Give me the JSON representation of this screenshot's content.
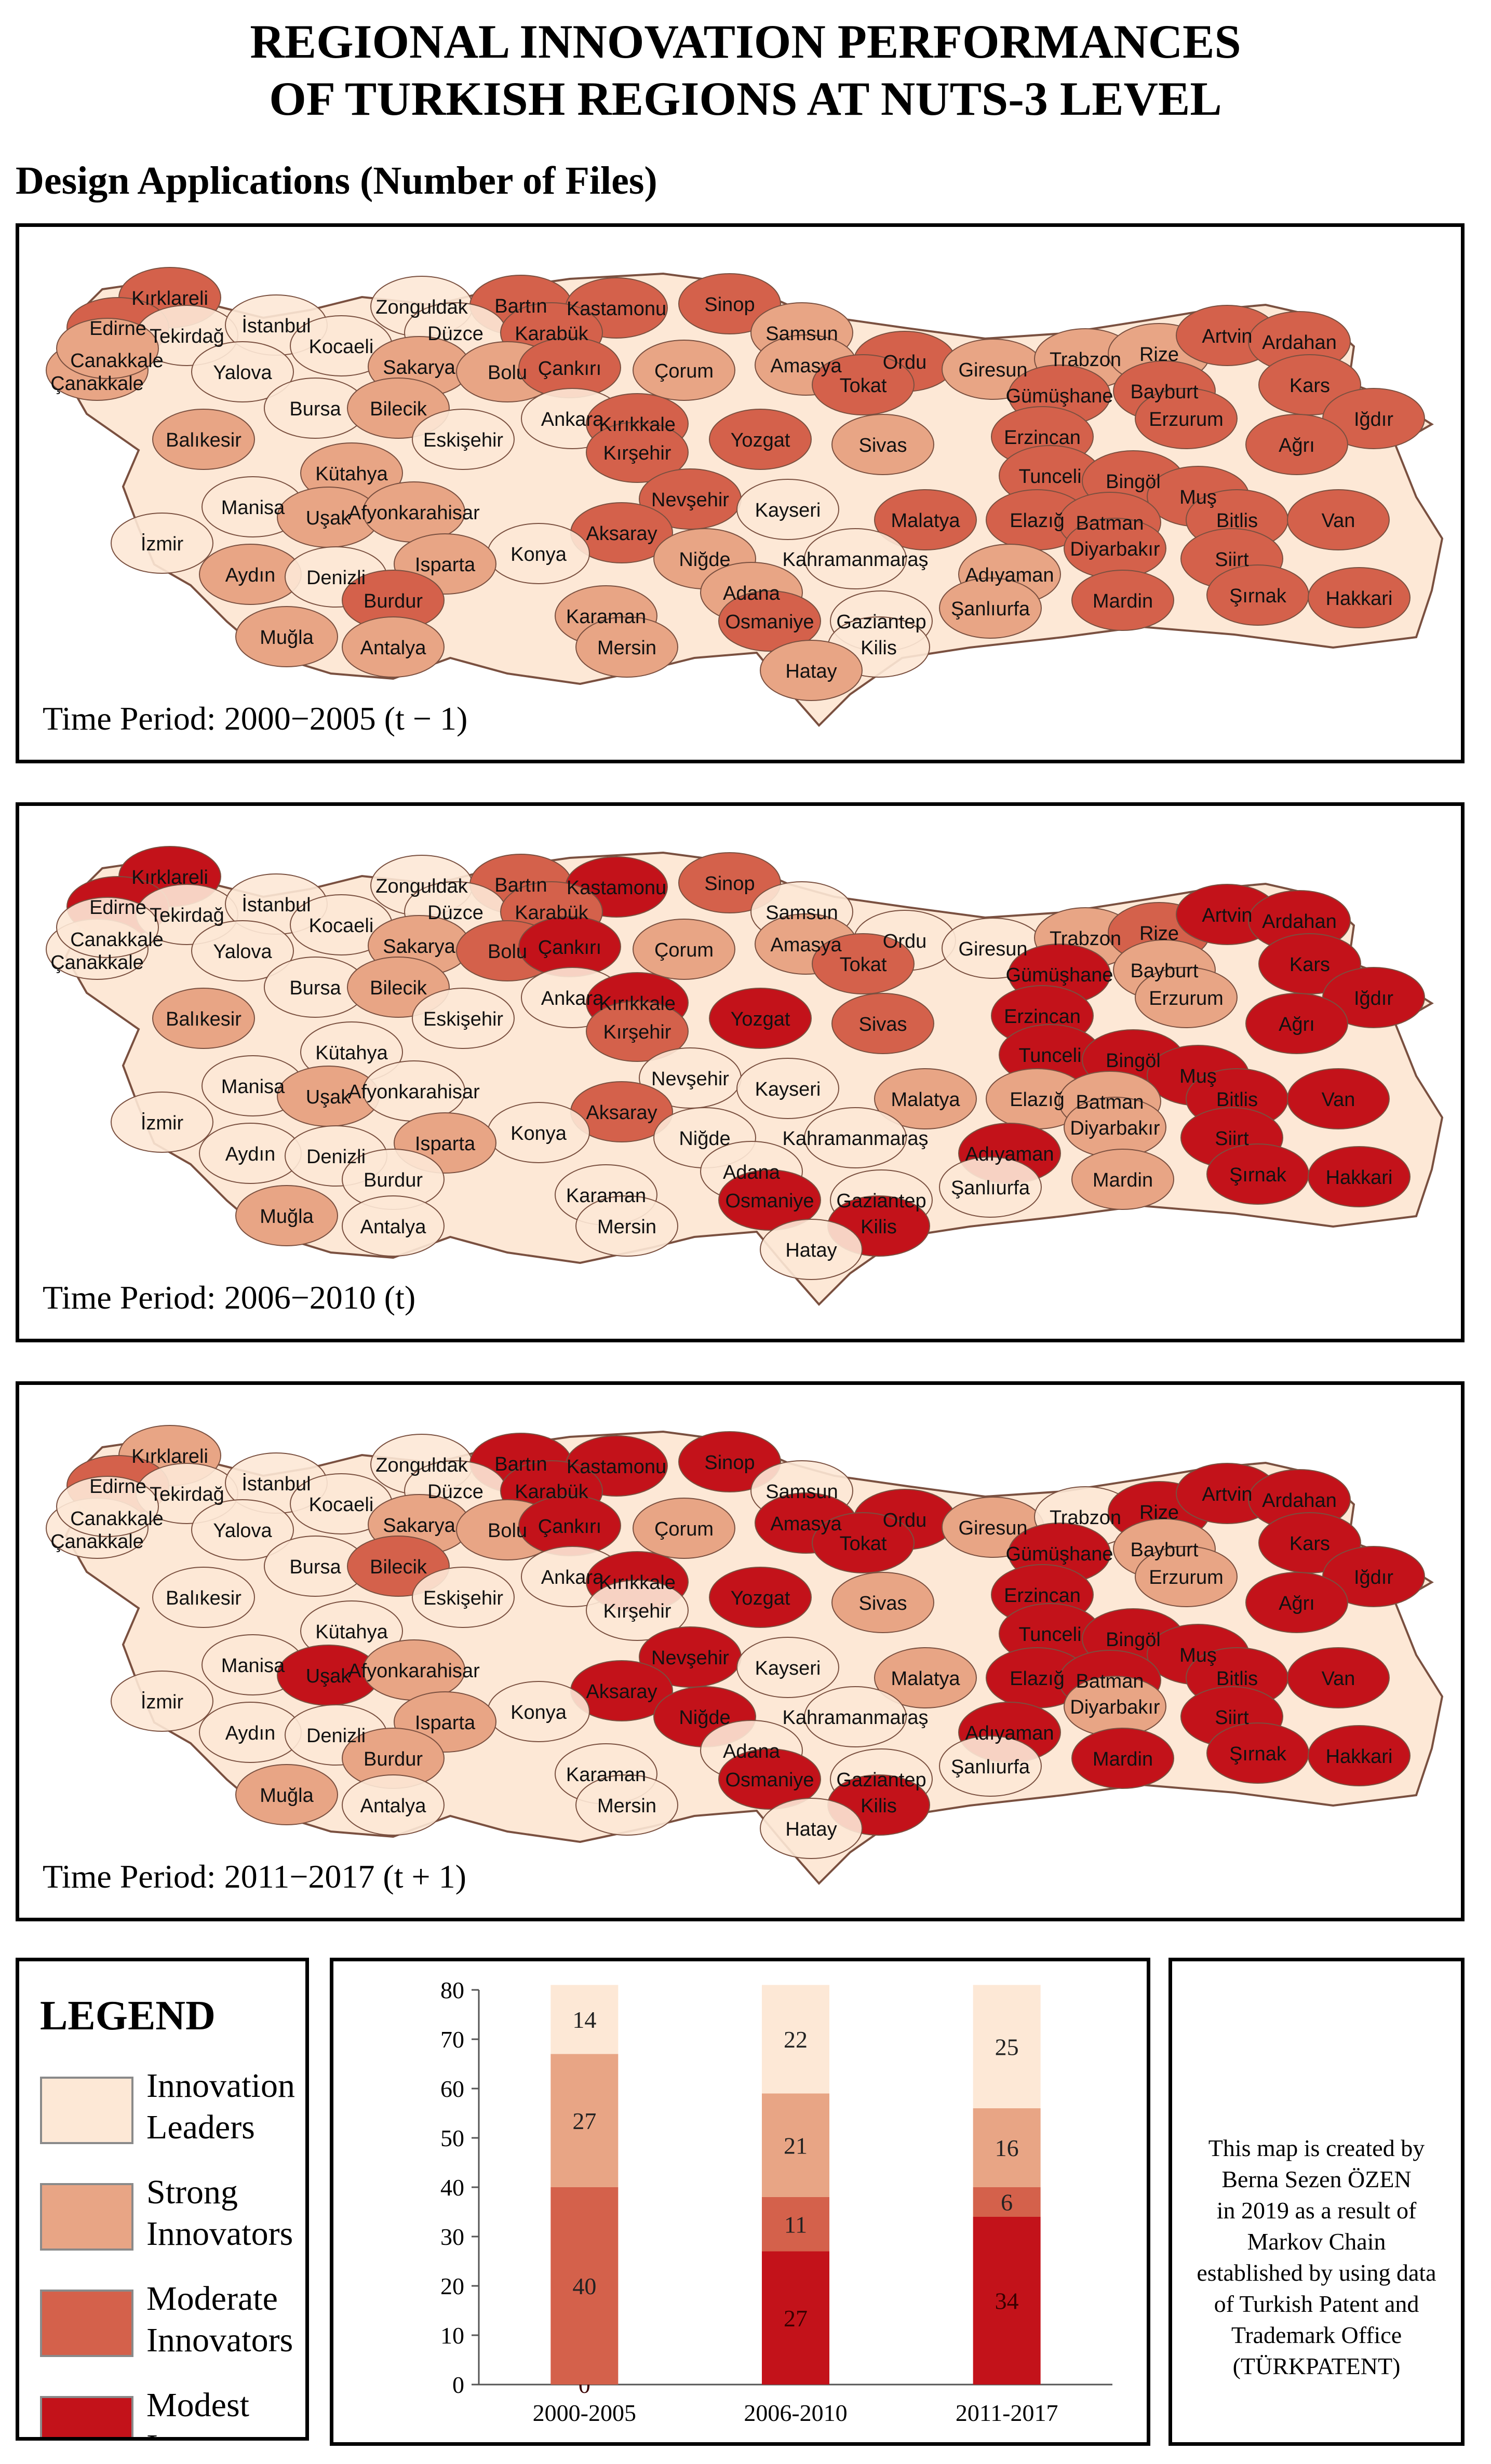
{
  "header": {
    "title_line1": "REGIONAL INNOVATION PERFORMANCES",
    "title_line2": "OF TURKISH REGIONS AT NUTS-3 LEVEL",
    "subtitle": "Design Applications (Number of Files)"
  },
  "colors": {
    "leaders": "#fde8d6",
    "strong": "#e8a585",
    "moderate": "#d4614b",
    "modest": "#c3121a",
    "border": "#7a5040"
  },
  "maps": [
    {
      "period": "Time Period: 2000−2005 (t − 1)",
      "labels": [
        {
          "t": "Kırklareli",
          "c": "moderate"
        },
        {
          "t": "Edirne",
          "c": "moderate"
        },
        {
          "t": "Tekirdağ",
          "c": "leaders"
        },
        {
          "t": "İstanbul",
          "c": "leaders"
        },
        {
          "t": "Zonguldak",
          "c": "leaders"
        },
        {
          "t": "Bartın",
          "c": "moderate"
        },
        {
          "t": "Kastamonu",
          "c": "moderate"
        },
        {
          "t": "Sinop",
          "c": "moderate"
        },
        {
          "t": "Düzce",
          "c": "leaders"
        },
        {
          "t": "Karabük",
          "c": "moderate"
        },
        {
          "t": "Samsun",
          "c": "strong"
        },
        {
          "t": "Kocaeli",
          "c": "leaders"
        },
        {
          "t": "Çanakkale",
          "c": "strong"
        },
        {
          "t": "Yalova",
          "c": "leaders"
        },
        {
          "t": "Sakarya",
          "c": "strong"
        },
        {
          "t": "Bolu",
          "c": "strong"
        },
        {
          "t": "Çankırı",
          "c": "moderate"
        },
        {
          "t": "Çorum",
          "c": "strong"
        },
        {
          "t": "Amasya",
          "c": "strong"
        },
        {
          "t": "Ordu",
          "c": "moderate"
        },
        {
          "t": "Giresun",
          "c": "strong"
        },
        {
          "t": "Trabzon",
          "c": "strong"
        },
        {
          "t": "Rize",
          "c": "strong"
        },
        {
          "t": "Artvin",
          "c": "moderate"
        },
        {
          "t": "Ardahan",
          "c": "moderate"
        },
        {
          "t": "Tokat",
          "c": "moderate"
        },
        {
          "t": "Gümüşhane",
          "c": "moderate"
        },
        {
          "t": "Bayburt",
          "c": "moderate"
        },
        {
          "t": "Kars",
          "c": "moderate"
        },
        {
          "t": "Bursa",
          "c": "leaders"
        },
        {
          "t": "Bilecik",
          "c": "strong"
        },
        {
          "t": "Ankara",
          "c": "leaders"
        },
        {
          "t": "Kırıkkale",
          "c": "moderate"
        },
        {
          "t": "Yozgat",
          "c": "moderate"
        },
        {
          "t": "Erzurum",
          "c": "moderate"
        },
        {
          "t": "Iğdır",
          "c": "moderate"
        },
        {
          "t": "Balıkesir",
          "c": "strong"
        },
        {
          "t": "Eskişehir",
          "c": "leaders"
        },
        {
          "t": "Kırşehir",
          "c": "moderate"
        },
        {
          "t": "Sivas",
          "c": "strong"
        },
        {
          "t": "Erzincan",
          "c": "moderate"
        },
        {
          "t": "Ağrı",
          "c": "moderate"
        },
        {
          "t": "Kütahya",
          "c": "strong"
        },
        {
          "t": "Tunceli",
          "c": "moderate"
        },
        {
          "t": "Bingöl",
          "c": "moderate"
        },
        {
          "t": "Manisa",
          "c": "leaders"
        },
        {
          "t": "Uşak",
          "c": "strong"
        },
        {
          "t": "Afyonkarahisar",
          "c": "strong"
        },
        {
          "t": "Nevşehir",
          "c": "moderate"
        },
        {
          "t": "Kayseri",
          "c": "leaders"
        },
        {
          "t": "Muş",
          "c": "moderate"
        },
        {
          "t": "Malatya",
          "c": "moderate"
        },
        {
          "t": "Elazığ",
          "c": "moderate"
        },
        {
          "t": "Batman",
          "c": "moderate"
        },
        {
          "t": "Bitlis",
          "c": "moderate"
        },
        {
          "t": "Van",
          "c": "moderate"
        },
        {
          "t": "İzmir",
          "c": "leaders"
        },
        {
          "t": "Aksaray",
          "c": "moderate"
        },
        {
          "t": "Konya",
          "c": "leaders"
        },
        {
          "t": "Niğde",
          "c": "strong"
        },
        {
          "t": "Kahramanmaraş",
          "c": "leaders"
        },
        {
          "t": "Diyarbakır",
          "c": "moderate"
        },
        {
          "t": "Aydın",
          "c": "strong"
        },
        {
          "t": "Denizli",
          "c": "leaders"
        },
        {
          "t": "Isparta",
          "c": "strong"
        },
        {
          "t": "Adıyaman",
          "c": "strong"
        },
        {
          "t": "Siirt",
          "c": "moderate"
        },
        {
          "t": "Burdur",
          "c": "moderate"
        },
        {
          "t": "Şırnak",
          "c": "moderate"
        },
        {
          "t": "Hakkari",
          "c": "moderate"
        },
        {
          "t": "Adana",
          "c": "strong"
        },
        {
          "t": "Karaman",
          "c": "strong"
        },
        {
          "t": "Mardin",
          "c": "moderate"
        },
        {
          "t": "Muğla",
          "c": "strong"
        },
        {
          "t": "Osmaniye",
          "c": "moderate"
        },
        {
          "t": "Gaziantep",
          "c": "leaders"
        },
        {
          "t": "Şanlıurfa",
          "c": "strong"
        },
        {
          "t": "Antalya",
          "c": "strong"
        },
        {
          "t": "Mersin",
          "c": "strong"
        },
        {
          "t": "Kilis",
          "c": "leaders"
        },
        {
          "t": "Hatay",
          "c": "strong"
        },
        {
          "t": "Canakkale",
          "c": "strong"
        }
      ]
    },
    {
      "period": "Time Period: 2006−2010 (t)",
      "labels": [
        {
          "t": "Kırklareli",
          "c": "modest"
        },
        {
          "t": "Edirne",
          "c": "modest"
        },
        {
          "t": "Tekirdağ",
          "c": "leaders"
        },
        {
          "t": "İstanbul",
          "c": "leaders"
        },
        {
          "t": "Zonguldak",
          "c": "leaders"
        },
        {
          "t": "Bartın",
          "c": "moderate"
        },
        {
          "t": "Kastamonu",
          "c": "modest"
        },
        {
          "t": "Sinop",
          "c": "moderate"
        },
        {
          "t": "Düzce",
          "c": "leaders"
        },
        {
          "t": "Karabük",
          "c": "moderate"
        },
        {
          "t": "Samsun",
          "c": "leaders"
        },
        {
          "t": "Kocaeli",
          "c": "leaders"
        },
        {
          "t": "Çanakkale",
          "c": "leaders"
        },
        {
          "t": "Yalova",
          "c": "leaders"
        },
        {
          "t": "Sakarya",
          "c": "strong"
        },
        {
          "t": "Bolu",
          "c": "moderate"
        },
        {
          "t": "Çankırı",
          "c": "modest"
        },
        {
          "t": "Çorum",
          "c": "strong"
        },
        {
          "t": "Amasya",
          "c": "strong"
        },
        {
          "t": "Ordu",
          "c": "leaders"
        },
        {
          "t": "Giresun",
          "c": "leaders"
        },
        {
          "t": "Trabzon",
          "c": "strong"
        },
        {
          "t": "Rize",
          "c": "moderate"
        },
        {
          "t": "Artvin",
          "c": "modest"
        },
        {
          "t": "Ardahan",
          "c": "modest"
        },
        {
          "t": "Tokat",
          "c": "moderate"
        },
        {
          "t": "Gümüşhane",
          "c": "modest"
        },
        {
          "t": "Bayburt",
          "c": "strong"
        },
        {
          "t": "Kars",
          "c": "modest"
        },
        {
          "t": "Bursa",
          "c": "leaders"
        },
        {
          "t": "Bilecik",
          "c": "strong"
        },
        {
          "t": "Ankara",
          "c": "leaders"
        },
        {
          "t": "Kırıkkale",
          "c": "modest"
        },
        {
          "t": "Yozgat",
          "c": "modest"
        },
        {
          "t": "Erzurum",
          "c": "strong"
        },
        {
          "t": "Iğdır",
          "c": "modest"
        },
        {
          "t": "Balıkesir",
          "c": "strong"
        },
        {
          "t": "Eskişehir",
          "c": "leaders"
        },
        {
          "t": "Kırşehir",
          "c": "moderate"
        },
        {
          "t": "Sivas",
          "c": "moderate"
        },
        {
          "t": "Erzincan",
          "c": "modest"
        },
        {
          "t": "Ağrı",
          "c": "modest"
        },
        {
          "t": "Kütahya",
          "c": "leaders"
        },
        {
          "t": "Tunceli",
          "c": "modest"
        },
        {
          "t": "Bingöl",
          "c": "modest"
        },
        {
          "t": "Manisa",
          "c": "leaders"
        },
        {
          "t": "Uşak",
          "c": "strong"
        },
        {
          "t": "Afyonkarahisar",
          "c": "leaders"
        },
        {
          "t": "Nevşehir",
          "c": "leaders"
        },
        {
          "t": "Kayseri",
          "c": "leaders"
        },
        {
          "t": "Muş",
          "c": "modest"
        },
        {
          "t": "Malatya",
          "c": "strong"
        },
        {
          "t": "Elazığ",
          "c": "strong"
        },
        {
          "t": "Batman",
          "c": "strong"
        },
        {
          "t": "Bitlis",
          "c": "modest"
        },
        {
          "t": "Van",
          "c": "modest"
        },
        {
          "t": "İzmir",
          "c": "leaders"
        },
        {
          "t": "Aksaray",
          "c": "moderate"
        },
        {
          "t": "Konya",
          "c": "leaders"
        },
        {
          "t": "Niğde",
          "c": "leaders"
        },
        {
          "t": "Kahramanmaraş",
          "c": "leaders"
        },
        {
          "t": "Diyarbakır",
          "c": "strong"
        },
        {
          "t": "Aydın",
          "c": "leaders"
        },
        {
          "t": "Denizli",
          "c": "leaders"
        },
        {
          "t": "Isparta",
          "c": "strong"
        },
        {
          "t": "Adıyaman",
          "c": "modest"
        },
        {
          "t": "Siirt",
          "c": "modest"
        },
        {
          "t": "Burdur",
          "c": "leaders"
        },
        {
          "t": "Şırnak",
          "c": "modest"
        },
        {
          "t": "Hakkari",
          "c": "modest"
        },
        {
          "t": "Adana",
          "c": "leaders"
        },
        {
          "t": "Karaman",
          "c": "leaders"
        },
        {
          "t": "Mardin",
          "c": "strong"
        },
        {
          "t": "Muğla",
          "c": "strong"
        },
        {
          "t": "Osmaniye",
          "c": "modest"
        },
        {
          "t": "Gaziantep",
          "c": "leaders"
        },
        {
          "t": "Şanlıurfa",
          "c": "leaders"
        },
        {
          "t": "Antalya",
          "c": "leaders"
        },
        {
          "t": "Mersin",
          "c": "leaders"
        },
        {
          "t": "Kilis",
          "c": "modest"
        },
        {
          "t": "Hatay",
          "c": "leaders"
        },
        {
          "t": "Canakkale",
          "c": "leaders"
        }
      ]
    },
    {
      "period": "Time Period: 2011−2017 (t + 1)",
      "labels": [
        {
          "t": "Kırklareli",
          "c": "strong"
        },
        {
          "t": "Edirne",
          "c": "moderate"
        },
        {
          "t": "Tekirdağ",
          "c": "leaders"
        },
        {
          "t": "İstanbul",
          "c": "leaders"
        },
        {
          "t": "Zonguldak",
          "c": "leaders"
        },
        {
          "t": "Bartın",
          "c": "modest"
        },
        {
          "t": "Kastamonu",
          "c": "modest"
        },
        {
          "t": "Sinop",
          "c": "modest"
        },
        {
          "t": "Düzce",
          "c": "leaders"
        },
        {
          "t": "Karabük",
          "c": "modest"
        },
        {
          "t": "Samsun",
          "c": "leaders"
        },
        {
          "t": "Kocaeli",
          "c": "leaders"
        },
        {
          "t": "Çanakkale",
          "c": "leaders"
        },
        {
          "t": "Yalova",
          "c": "leaders"
        },
        {
          "t": "Sakarya",
          "c": "strong"
        },
        {
          "t": "Bolu",
          "c": "strong"
        },
        {
          "t": "Çankırı",
          "c": "modest"
        },
        {
          "t": "Çorum",
          "c": "strong"
        },
        {
          "t": "Amasya",
          "c": "modest"
        },
        {
          "t": "Ordu",
          "c": "modest"
        },
        {
          "t": "Giresun",
          "c": "strong"
        },
        {
          "t": "Trabzon",
          "c": "leaders"
        },
        {
          "t": "Rize",
          "c": "modest"
        },
        {
          "t": "Artvin",
          "c": "modest"
        },
        {
          "t": "Ardahan",
          "c": "modest"
        },
        {
          "t": "Tokat",
          "c": "modest"
        },
        {
          "t": "Gümüşhane",
          "c": "modest"
        },
        {
          "t": "Bayburt",
          "c": "strong"
        },
        {
          "t": "Kars",
          "c": "modest"
        },
        {
          "t": "Bursa",
          "c": "leaders"
        },
        {
          "t": "Bilecik",
          "c": "moderate"
        },
        {
          "t": "Ankara",
          "c": "leaders"
        },
        {
          "t": "Kırıkkale",
          "c": "modest"
        },
        {
          "t": "Yozgat",
          "c": "modest"
        },
        {
          "t": "Erzurum",
          "c": "strong"
        },
        {
          "t": "Iğdır",
          "c": "modest"
        },
        {
          "t": "Balıkesir",
          "c": "leaders"
        },
        {
          "t": "Eskişehir",
          "c": "leaders"
        },
        {
          "t": "Kırşehir",
          "c": "leaders"
        },
        {
          "t": "Sivas",
          "c": "strong"
        },
        {
          "t": "Erzincan",
          "c": "modest"
        },
        {
          "t": "Ağrı",
          "c": "modest"
        },
        {
          "t": "Kütahya",
          "c": "leaders"
        },
        {
          "t": "Tunceli",
          "c": "modest"
        },
        {
          "t": "Bingöl",
          "c": "modest"
        },
        {
          "t": "Manisa",
          "c": "leaders"
        },
        {
          "t": "Uşak",
          "c": "modest"
        },
        {
          "t": "Afyonkarahisar",
          "c": "strong"
        },
        {
          "t": "Nevşehir",
          "c": "modest"
        },
        {
          "t": "Kayseri",
          "c": "leaders"
        },
        {
          "t": "Muş",
          "c": "modest"
        },
        {
          "t": "Malatya",
          "c": "strong"
        },
        {
          "t": "Elazığ",
          "c": "modest"
        },
        {
          "t": "Batman",
          "c": "modest"
        },
        {
          "t": "Bitlis",
          "c": "modest"
        },
        {
          "t": "Van",
          "c": "modest"
        },
        {
          "t": "İzmir",
          "c": "leaders"
        },
        {
          "t": "Aksaray",
          "c": "modest"
        },
        {
          "t": "Konya",
          "c": "leaders"
        },
        {
          "t": "Niğde",
          "c": "modest"
        },
        {
          "t": "Kahramanmaraş",
          "c": "leaders"
        },
        {
          "t": "Diyarbakır",
          "c": "strong"
        },
        {
          "t": "Aydın",
          "c": "leaders"
        },
        {
          "t": "Denizli",
          "c": "leaders"
        },
        {
          "t": "Isparta",
          "c": "strong"
        },
        {
          "t": "Adıyaman",
          "c": "modest"
        },
        {
          "t": "Siirt",
          "c": "modest"
        },
        {
          "t": "Burdur",
          "c": "strong"
        },
        {
          "t": "Şırnak",
          "c": "modest"
        },
        {
          "t": "Hakkari",
          "c": "modest"
        },
        {
          "t": "Adana",
          "c": "leaders"
        },
        {
          "t": "Karaman",
          "c": "leaders"
        },
        {
          "t": "Mardin",
          "c": "modest"
        },
        {
          "t": "Muğla",
          "c": "strong"
        },
        {
          "t": "Osmaniye",
          "c": "modest"
        },
        {
          "t": "Gaziantep",
          "c": "leaders"
        },
        {
          "t": "Şanlıurfa",
          "c": "leaders"
        },
        {
          "t": "Antalya",
          "c": "leaders"
        },
        {
          "t": "Mersin",
          "c": "leaders"
        },
        {
          "t": "Kilis",
          "c": "modest"
        },
        {
          "t": "Hatay",
          "c": "leaders"
        },
        {
          "t": "Canakkale",
          "c": "leaders"
        }
      ]
    }
  ],
  "legend": {
    "title": "LEGEND",
    "items": [
      {
        "line1": "Innovation",
        "line2": "Leaders",
        "c": "leaders"
      },
      {
        "line1": "Strong",
        "line2": "Innovators",
        "c": "strong"
      },
      {
        "line1": "Moderate",
        "line2": "Innovators",
        "c": "moderate"
      },
      {
        "line1": "Modest",
        "line2": "Innovators",
        "c": "modest"
      }
    ]
  },
  "chart_data": {
    "type": "bar",
    "stacked": true,
    "categories": [
      "2000-2005",
      "2006-2010",
      "2011-2017"
    ],
    "ylim": [
      0,
      80
    ],
    "yticks": [
      0,
      10,
      20,
      30,
      40,
      50,
      60,
      70,
      80
    ],
    "series": [
      {
        "key": "modest",
        "values": [
          0,
          27,
          34
        ]
      },
      {
        "key": "moderate",
        "values": [
          40,
          11,
          6
        ]
      },
      {
        "key": "strong",
        "values": [
          27,
          21,
          16
        ]
      },
      {
        "key": "leaders",
        "values": [
          14,
          22,
          25
        ]
      }
    ],
    "grid": false
  },
  "note": {
    "lines": [
      "This map is created by",
      "Berna Sezen ÖZEN",
      "in 2019 as a result of",
      "Markov Chain",
      "established by using data",
      "of Turkish Patent and",
      "Trademark Office",
      "(TÜRKPATENT)"
    ]
  }
}
